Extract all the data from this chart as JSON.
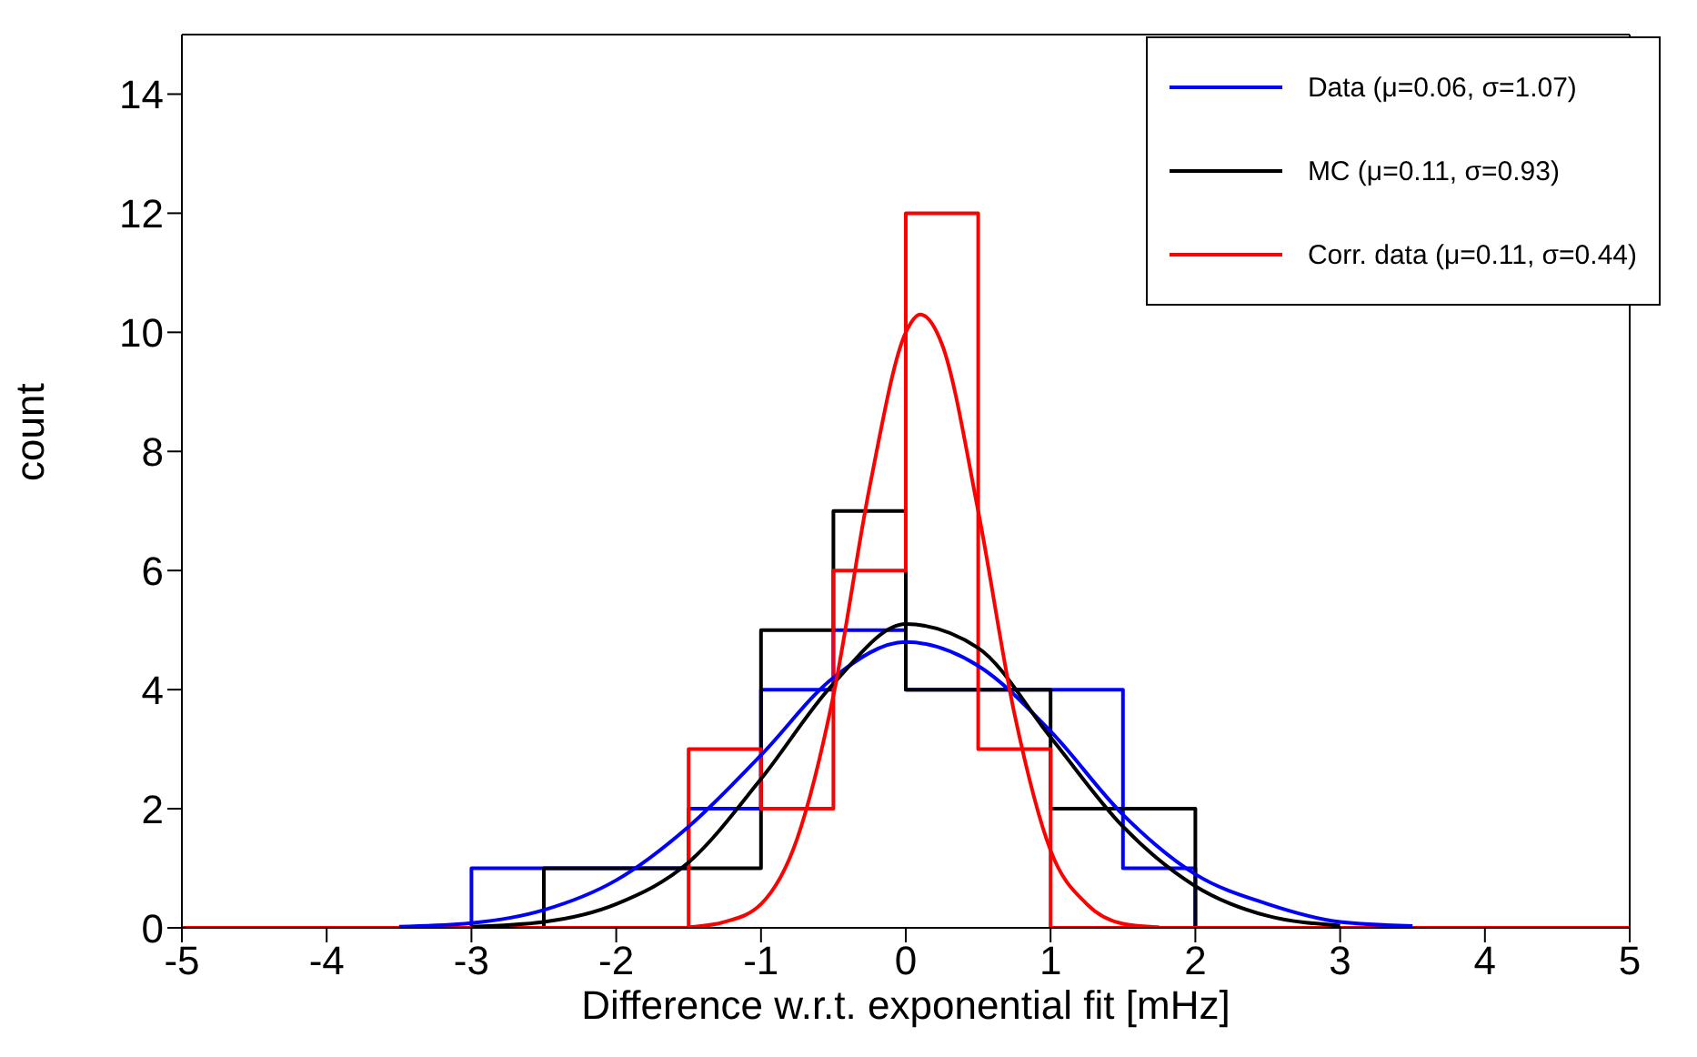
{
  "chart_data": {
    "type": "histogram",
    "xlabel": "Difference w.r.t. exponential fit [mHz]",
    "ylabel": "count",
    "bins": [
      -5,
      -4.5,
      -4,
      -3.5,
      -3,
      -2.5,
      -2,
      -1.5,
      -1,
      -0.5,
      0,
      0.5,
      1,
      1.5,
      2,
      2.5,
      3,
      3.5,
      4,
      4.5,
      5
    ],
    "series": [
      {
        "name": "Data (μ=0.06, σ=1.07)",
        "color": "#0000ff",
        "values": [
          0,
          0,
          0,
          0,
          1,
          1,
          1,
          2,
          4,
          5,
          4,
          4,
          4,
          1,
          0,
          0,
          0,
          0,
          0,
          0
        ]
      },
      {
        "name": "MC (μ=0.11, σ=0.93)",
        "color": "#000000",
        "values": [
          0,
          0,
          0,
          0,
          0,
          1,
          1,
          1,
          5,
          7,
          4,
          4,
          2,
          2,
          0,
          0,
          0,
          0,
          0,
          0
        ]
      },
      {
        "name": "Corr. data (μ=0.11, σ=0.44)",
        "color": "#ff0000",
        "values": [
          0,
          0,
          0,
          0,
          0,
          0,
          0,
          3,
          2,
          6,
          12,
          3,
          0,
          0,
          0,
          0,
          0,
          0,
          0,
          0
        ]
      },
      {
        "type": "line",
        "color": "#0000fe",
        "x": [
          -3.5,
          -3,
          -2.5,
          -2,
          -1.5,
          -1,
          -0.5,
          0,
          0.5,
          1,
          1.5,
          2,
          2.5,
          3,
          3.5
        ],
        "values": [
          0.02,
          0.08,
          0.3,
          0.8,
          1.7,
          2.9,
          4.2,
          4.8,
          4.4,
          3.3,
          1.9,
          0.9,
          0.4,
          0.1,
          0.03
        ]
      },
      {
        "type": "line",
        "color": "#010101",
        "x": [
          -3,
          -2.5,
          -2,
          -1.5,
          -1,
          -0.5,
          0,
          0.5,
          1,
          1.5,
          2,
          2.5,
          3
        ],
        "values": [
          0.02,
          0.1,
          0.4,
          1.1,
          2.5,
          4.1,
          5.1,
          4.7,
          3.2,
          1.7,
          0.7,
          0.2,
          0.04
        ]
      },
      {
        "type": "line",
        "color": "#fe0000",
        "x": [
          -1.5,
          -1.25,
          -1,
          -0.75,
          -0.5,
          -0.25,
          0,
          0.1,
          0.25,
          0.5,
          0.75,
          1,
          1.25,
          1.5,
          1.75
        ],
        "values": [
          0.01,
          0.1,
          0.4,
          1.5,
          3.9,
          7.4,
          10,
          10.3,
          9.8,
          7,
          3.6,
          1.3,
          0.4,
          0.07,
          0.01
        ]
      }
    ],
    "xlim": [
      -5,
      5
    ],
    "xticks": [
      -5,
      -4,
      -3,
      -2,
      -1,
      0,
      1,
      2,
      3,
      4,
      5
    ],
    "ylim": [
      0,
      15
    ],
    "yticks": [
      0,
      2,
      4,
      6,
      8,
      10,
      12,
      14
    ],
    "legend": "top right"
  }
}
